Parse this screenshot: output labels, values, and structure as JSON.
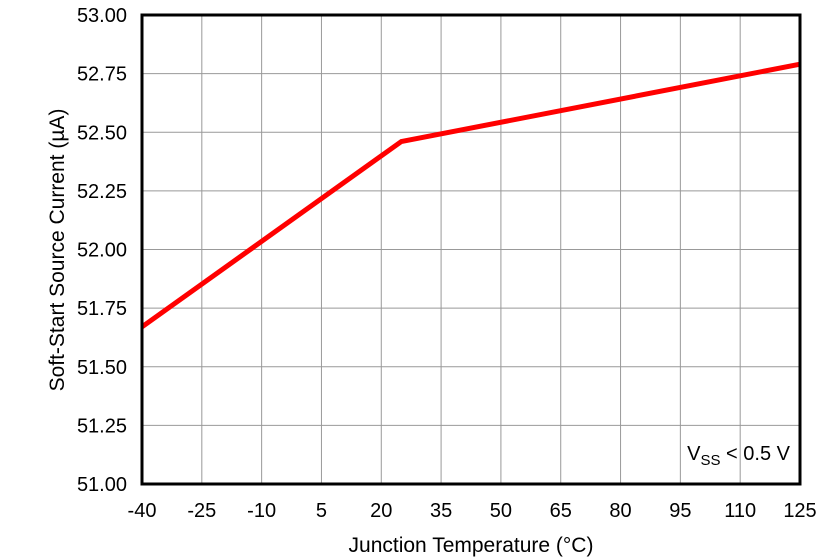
{
  "chart_data": {
    "type": "line",
    "title": "",
    "xlabel": "Junction Temperature (°C)",
    "ylabel": "Soft-Start Source Current (µA)",
    "xlim": [
      -40,
      125
    ],
    "ylim": [
      51.0,
      53.0
    ],
    "x_ticks": [
      "-40",
      "-25",
      "-10",
      "5",
      "20",
      "35",
      "50",
      "65",
      "80",
      "95",
      "110",
      "125"
    ],
    "y_ticks": [
      "51.00",
      "51.25",
      "51.50",
      "51.75",
      "52.00",
      "52.25",
      "52.50",
      "52.75",
      "53.00"
    ],
    "grid": true,
    "legend": null,
    "annotation": {
      "main": "V",
      "sub": "SS",
      "rest": " < 0.5 V"
    },
    "series": [
      {
        "name": "Soft-Start Source Current",
        "color": "#ff0000",
        "x": [
          -40,
          25,
          125
        ],
        "y": [
          51.67,
          52.46,
          52.79
        ]
      }
    ]
  }
}
